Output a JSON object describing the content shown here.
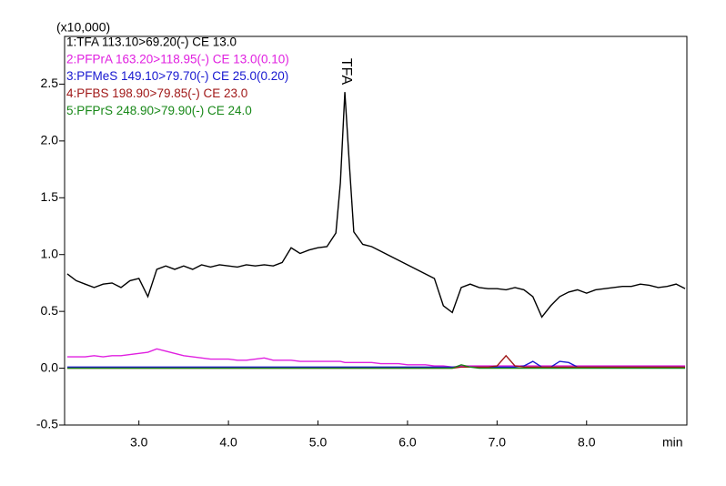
{
  "chart_data": {
    "type": "line",
    "y_label": "(x10,000)",
    "x_label": "min",
    "annotation": "TFA",
    "x": [
      2.2,
      2.3,
      2.4,
      2.5,
      2.6,
      2.7,
      2.8,
      2.9,
      3.0,
      3.1,
      3.2,
      3.3,
      3.4,
      3.5,
      3.6,
      3.7,
      3.8,
      3.9,
      4.0,
      4.1,
      4.2,
      4.3,
      4.4,
      4.5,
      4.6,
      4.7,
      4.8,
      4.9,
      5.0,
      5.1,
      5.2,
      5.25,
      5.3,
      5.35,
      5.4,
      5.5,
      5.6,
      5.7,
      5.8,
      5.9,
      6.0,
      6.1,
      6.2,
      6.3,
      6.4,
      6.5,
      6.6,
      6.7,
      6.8,
      6.9,
      7.0,
      7.1,
      7.2,
      7.3,
      7.4,
      7.5,
      7.6,
      7.7,
      7.8,
      7.9,
      8.0,
      8.1,
      8.2,
      8.3,
      8.4,
      8.5,
      8.6,
      8.7,
      8.8,
      8.9,
      9.0,
      9.1
    ],
    "series": [
      {
        "name": "1:TFA 113.10>69.20(-) CE 13.0",
        "color": "#000000",
        "values": [
          0.83,
          0.77,
          0.74,
          0.71,
          0.74,
          0.75,
          0.71,
          0.77,
          0.79,
          0.63,
          0.87,
          0.9,
          0.87,
          0.9,
          0.87,
          0.91,
          0.89,
          0.91,
          0.9,
          0.89,
          0.91,
          0.9,
          0.91,
          0.9,
          0.93,
          1.06,
          1.01,
          1.04,
          1.06,
          1.07,
          1.19,
          1.63,
          2.43,
          1.8,
          1.2,
          1.09,
          1.07,
          1.03,
          0.99,
          0.95,
          0.91,
          0.87,
          0.83,
          0.79,
          0.55,
          0.49,
          0.71,
          0.74,
          0.71,
          0.7,
          0.7,
          0.69,
          0.71,
          0.69,
          0.63,
          0.45,
          0.55,
          0.63,
          0.67,
          0.69,
          0.66,
          0.69,
          0.7,
          0.71,
          0.72,
          0.72,
          0.74,
          0.73,
          0.71,
          0.72,
          0.74,
          0.7
        ]
      },
      {
        "name": "2:PFPrA 163.20>118.95(-) CE 13.0(0.10)",
        "color": "#e020e0",
        "values": [
          0.1,
          0.1,
          0.1,
          0.11,
          0.1,
          0.11,
          0.11,
          0.12,
          0.13,
          0.14,
          0.17,
          0.15,
          0.13,
          0.11,
          0.1,
          0.09,
          0.08,
          0.08,
          0.08,
          0.07,
          0.07,
          0.08,
          0.09,
          0.07,
          0.07,
          0.07,
          0.06,
          0.06,
          0.06,
          0.06,
          0.06,
          0.06,
          0.05,
          0.05,
          0.05,
          0.05,
          0.05,
          0.04,
          0.04,
          0.04,
          0.03,
          0.03,
          0.03,
          0.02,
          0.02,
          0.01,
          0.02,
          0.02,
          0.02,
          0.02,
          0.02,
          0.02,
          0.02,
          0.02,
          0.02,
          0.02,
          0.02,
          0.02,
          0.02,
          0.02,
          0.02,
          0.02,
          0.02,
          0.02,
          0.02,
          0.02,
          0.02,
          0.02,
          0.02,
          0.02,
          0.02,
          0.02
        ]
      },
      {
        "name": "3:PFMeS 149.10>79.70(-) CE 25.0(0.20)",
        "color": "#1818d0",
        "values": [
          0.01,
          0.01,
          0.01,
          0.01,
          0.01,
          0.01,
          0.01,
          0.01,
          0.01,
          0.01,
          0.01,
          0.01,
          0.01,
          0.01,
          0.01,
          0.01,
          0.01,
          0.01,
          0.01,
          0.01,
          0.01,
          0.01,
          0.01,
          0.01,
          0.01,
          0.01,
          0.01,
          0.01,
          0.01,
          0.01,
          0.01,
          0.01,
          0.01,
          0.01,
          0.01,
          0.01,
          0.01,
          0.01,
          0.01,
          0.01,
          0.01,
          0.01,
          0.01,
          0.01,
          0.01,
          0.01,
          0.01,
          0.01,
          0.01,
          0.01,
          0.01,
          0.01,
          0.01,
          0.02,
          0.06,
          0.01,
          0.01,
          0.06,
          0.05,
          0.01,
          0.01,
          0.01,
          0.01,
          0.01,
          0.01,
          0.01,
          0.01,
          0.01,
          0.01,
          0.01,
          0.01,
          0.01
        ]
      },
      {
        "name": "4:PFBS 198.90>79.85(-) CE 23.0",
        "color": "#a01818",
        "values": [
          0.0,
          0.0,
          0.0,
          0.0,
          0.0,
          0.0,
          0.0,
          0.0,
          0.0,
          0.0,
          0.0,
          0.0,
          0.0,
          0.0,
          0.0,
          0.0,
          0.0,
          0.0,
          0.0,
          0.0,
          0.0,
          0.0,
          0.0,
          0.0,
          0.0,
          0.0,
          0.0,
          0.0,
          0.0,
          0.0,
          0.0,
          0.0,
          0.0,
          0.0,
          0.0,
          0.0,
          0.0,
          0.0,
          0.0,
          0.0,
          0.0,
          0.0,
          0.0,
          0.0,
          0.0,
          0.0,
          0.01,
          0.01,
          0.01,
          0.01,
          0.02,
          0.11,
          0.02,
          0.01,
          0.01,
          0.01,
          0.01,
          0.01,
          0.01,
          0.01,
          0.01,
          0.01,
          0.01,
          0.01,
          0.01,
          0.01,
          0.01,
          0.01,
          0.01,
          0.01,
          0.01,
          0.01
        ]
      },
      {
        "name": "5:PFPrS 248.90>79.90(-) CE 24.0",
        "color": "#188818",
        "values": [
          0.0,
          0.0,
          0.0,
          0.0,
          0.0,
          0.0,
          0.0,
          0.0,
          0.0,
          0.0,
          0.0,
          0.0,
          0.0,
          0.0,
          0.0,
          0.0,
          0.0,
          0.0,
          0.0,
          0.0,
          0.0,
          0.0,
          0.0,
          0.0,
          0.0,
          0.0,
          0.0,
          0.0,
          0.0,
          0.0,
          0.0,
          0.0,
          0.0,
          0.0,
          0.0,
          0.0,
          0.0,
          0.0,
          0.0,
          0.0,
          0.0,
          0.0,
          0.0,
          0.0,
          0.0,
          0.0,
          0.03,
          0.01,
          0.0,
          0.0,
          0.0,
          0.0,
          0.0,
          0.0,
          0.0,
          0.0,
          0.0,
          0.0,
          0.0,
          0.0,
          0.0,
          0.0,
          0.0,
          0.0,
          0.0,
          0.0,
          0.0,
          0.0,
          0.0,
          0.0,
          0.0,
          0.0
        ]
      }
    ],
    "xlim": [
      2.17,
      9.12
    ],
    "ylim": [
      -0.5,
      2.92
    ],
    "xticks": [
      {
        "value": 3,
        "label": "3.0"
      },
      {
        "value": 4,
        "label": "4.0"
      },
      {
        "value": 5,
        "label": "5.0"
      },
      {
        "value": 6,
        "label": "6.0"
      },
      {
        "value": 7,
        "label": "7.0"
      },
      {
        "value": 8,
        "label": "8.0"
      }
    ],
    "yticks": [
      -0.5,
      {
        "value": 0,
        "label": "0.0"
      },
      0.5,
      {
        "value": 1,
        "label": "1.0"
      },
      1.5,
      {
        "value": 2,
        "label": "2.0"
      },
      2.5
    ],
    "grid": false,
    "legend": "top-left"
  }
}
